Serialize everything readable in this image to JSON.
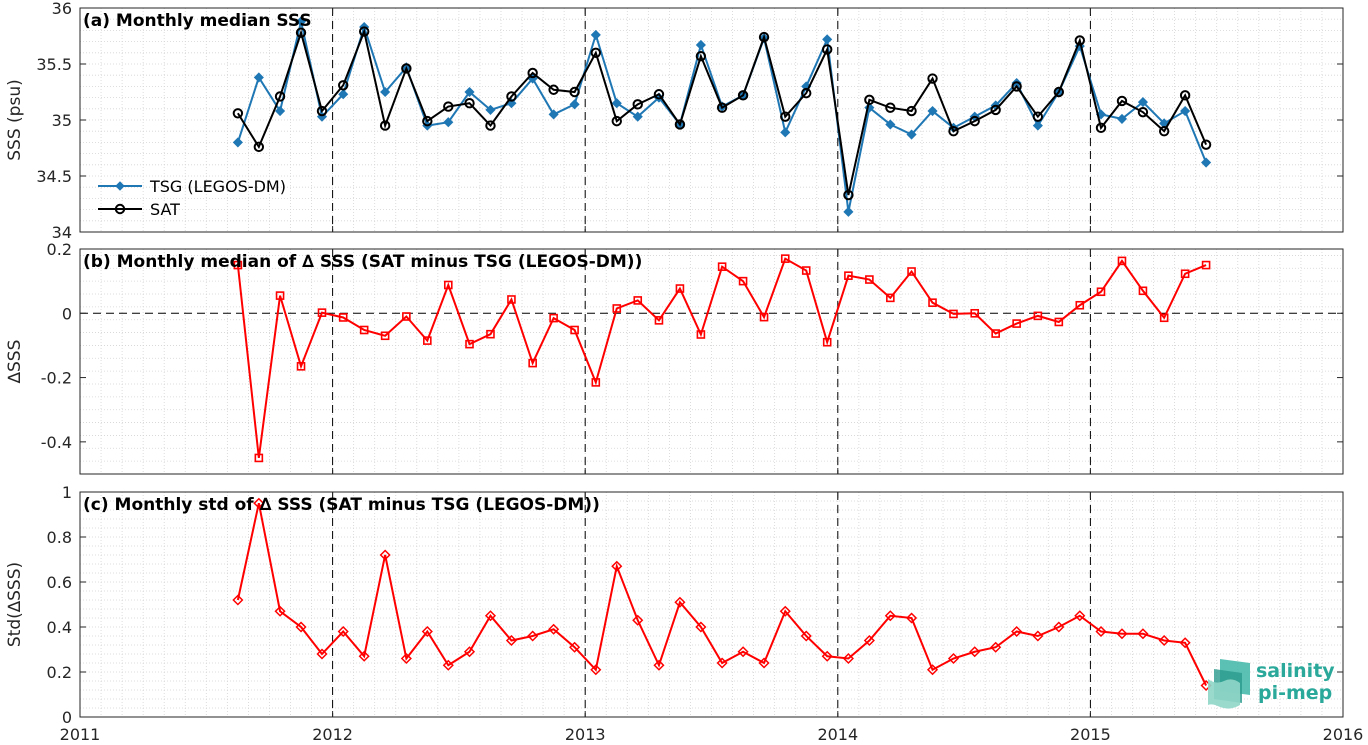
{
  "chart_data": [
    {
      "type": "line",
      "title": "(a) Monthly median SSS",
      "ylabel": "SSS (psu)",
      "xlim": [
        2011,
        2016
      ],
      "ylim": [
        34,
        36
      ],
      "yticks": [
        34,
        34.5,
        35,
        35.5,
        36
      ],
      "ytick_labels": [
        "34",
        "34.5",
        "35",
        "35.5",
        "36"
      ],
      "xticks": [
        2011,
        2012,
        2013,
        2014,
        2015,
        2016
      ],
      "legend_position": "bottom-left",
      "x": [
        2011.625,
        2011.708,
        2011.792,
        2011.875,
        2011.958,
        2012.042,
        2012.125,
        2012.208,
        2012.292,
        2012.375,
        2012.458,
        2012.542,
        2012.625,
        2012.708,
        2012.792,
        2012.875,
        2012.958,
        2013.042,
        2013.125,
        2013.208,
        2013.292,
        2013.375,
        2013.458,
        2013.542,
        2013.625,
        2013.708,
        2013.792,
        2013.875,
        2013.958,
        2014.042,
        2014.125,
        2014.208,
        2014.292,
        2014.375,
        2014.458,
        2014.542,
        2014.625,
        2014.708,
        2014.792,
        2014.875,
        2014.958,
        2015.042,
        2015.125,
        2015.208,
        2015.292,
        2015.375,
        2015.458
      ],
      "series": [
        {
          "name": "TSG (LEGOS-DM)",
          "color": "#1f77b4",
          "marker": "diamond",
          "values": [
            34.8,
            35.38,
            35.08,
            35.88,
            35.03,
            35.23,
            35.83,
            35.25,
            35.47,
            34.95,
            34.98,
            35.25,
            35.09,
            35.15,
            35.37,
            35.05,
            35.14,
            35.76,
            35.15,
            35.03,
            35.2,
            34.96,
            35.67,
            35.12,
            35.22,
            35.73,
            34.89,
            35.3,
            35.72,
            34.18,
            35.11,
            34.96,
            34.87,
            35.08,
            34.93,
            35.03,
            35.13,
            35.33,
            34.95,
            35.25,
            35.66,
            35.05,
            35.01,
            35.16,
            34.97,
            35.08,
            34.62
          ]
        },
        {
          "name": "SAT",
          "color": "#000000",
          "marker": "circle",
          "values": [
            35.06,
            34.76,
            35.21,
            35.78,
            35.08,
            35.31,
            35.79,
            34.95,
            35.46,
            34.99,
            35.12,
            35.15,
            34.95,
            35.21,
            35.42,
            35.27,
            35.25,
            35.6,
            34.99,
            35.14,
            35.23,
            34.96,
            35.57,
            35.11,
            35.22,
            35.74,
            35.03,
            35.24,
            35.63,
            34.33,
            35.18,
            35.11,
            35.08,
            35.37,
            34.9,
            34.99,
            35.09,
            35.3,
            35.03,
            35.25,
            35.71,
            34.93,
            35.17,
            35.07,
            34.9,
            35.22,
            34.78
          ]
        }
      ]
    },
    {
      "type": "line",
      "title": "(b) Monthly median of ∆ SSS (SAT minus TSG (LEGOS-DM))",
      "ylabel": "∆SSS",
      "xlim": [
        2011,
        2016
      ],
      "ylim": [
        -0.5,
        0.2
      ],
      "yticks": [
        -0.4,
        -0.2,
        0,
        0.2
      ],
      "ytick_labels": [
        "-0.4",
        "-0.2",
        "0",
        "0.2"
      ],
      "xticks": [
        2011,
        2012,
        2013,
        2014,
        2015,
        2016
      ],
      "x": [
        2011.625,
        2011.708,
        2011.792,
        2011.875,
        2011.958,
        2012.042,
        2012.125,
        2012.208,
        2012.292,
        2012.375,
        2012.458,
        2012.542,
        2012.625,
        2012.708,
        2012.792,
        2012.875,
        2012.958,
        2013.042,
        2013.125,
        2013.208,
        2013.292,
        2013.375,
        2013.458,
        2013.542,
        2013.625,
        2013.708,
        2013.792,
        2013.875,
        2013.958,
        2014.042,
        2014.125,
        2014.208,
        2014.292,
        2014.375,
        2014.458,
        2014.542,
        2014.625,
        2014.708,
        2014.792,
        2014.875,
        2014.958,
        2015.042,
        2015.125,
        2015.208,
        2015.292,
        2015.375,
        2015.458
      ],
      "series": [
        {
          "name": "",
          "color": "#ff0000",
          "marker": "square",
          "values": [
            0.15,
            -0.45,
            0.055,
            -0.165,
            0.002,
            -0.013,
            -0.052,
            -0.07,
            -0.01,
            -0.085,
            0.088,
            -0.096,
            -0.065,
            0.043,
            -0.155,
            -0.015,
            -0.052,
            -0.215,
            0.015,
            0.04,
            -0.022,
            0.077,
            -0.066,
            0.145,
            0.1,
            -0.012,
            0.17,
            0.133,
            -0.09,
            0.117,
            0.105,
            0.048,
            0.13,
            0.033,
            -0.002,
            0.0,
            -0.063,
            -0.032,
            -0.008,
            -0.027,
            0.025,
            0.067,
            0.163,
            0.07,
            -0.014,
            0.123,
            0.15
          ]
        }
      ]
    },
    {
      "type": "line",
      "title": "(c) Monthly std of ∆ SSS (SAT minus TSG (LEGOS-DM))",
      "ylabel": "Std(∆SSS)",
      "xlim": [
        2011,
        2016
      ],
      "ylim": [
        0,
        1
      ],
      "yticks": [
        0,
        0.2,
        0.4,
        0.6,
        0.8,
        1
      ],
      "ytick_labels": [
        "0",
        "0.2",
        "0.4",
        "0.6",
        "0.8",
        "1"
      ],
      "xticks": [
        2011,
        2012,
        2013,
        2014,
        2015,
        2016
      ],
      "xtick_labels": [
        "2011",
        "2012",
        "2013",
        "2014",
        "2015",
        "2016"
      ],
      "x": [
        2011.625,
        2011.708,
        2011.792,
        2011.875,
        2011.958,
        2012.042,
        2012.125,
        2012.208,
        2012.292,
        2012.375,
        2012.458,
        2012.542,
        2012.625,
        2012.708,
        2012.792,
        2012.875,
        2012.958,
        2013.042,
        2013.125,
        2013.208,
        2013.292,
        2013.375,
        2013.458,
        2013.542,
        2013.625,
        2013.708,
        2013.792,
        2013.875,
        2013.958,
        2014.042,
        2014.125,
        2014.208,
        2014.292,
        2014.375,
        2014.458,
        2014.542,
        2014.625,
        2014.708,
        2014.792,
        2014.875,
        2014.958,
        2015.042,
        2015.125,
        2015.208,
        2015.292,
        2015.375,
        2015.458
      ],
      "series": [
        {
          "name": "",
          "color": "#ff0000",
          "marker": "diamond",
          "values": [
            0.52,
            0.95,
            0.47,
            0.4,
            0.28,
            0.38,
            0.27,
            0.72,
            0.26,
            0.38,
            0.23,
            0.29,
            0.45,
            0.34,
            0.36,
            0.39,
            0.31,
            0.21,
            0.67,
            0.43,
            0.23,
            0.51,
            0.4,
            0.24,
            0.29,
            0.24,
            0.47,
            0.36,
            0.27,
            0.26,
            0.34,
            0.45,
            0.44,
            0.21,
            0.26,
            0.29,
            0.31,
            0.38,
            0.36,
            0.4,
            0.45,
            0.38,
            0.37,
            0.37,
            0.34,
            0.33,
            0.14
          ]
        }
      ]
    }
  ],
  "logo": {
    "line1": "salinity",
    "line2": "pi-mep"
  }
}
